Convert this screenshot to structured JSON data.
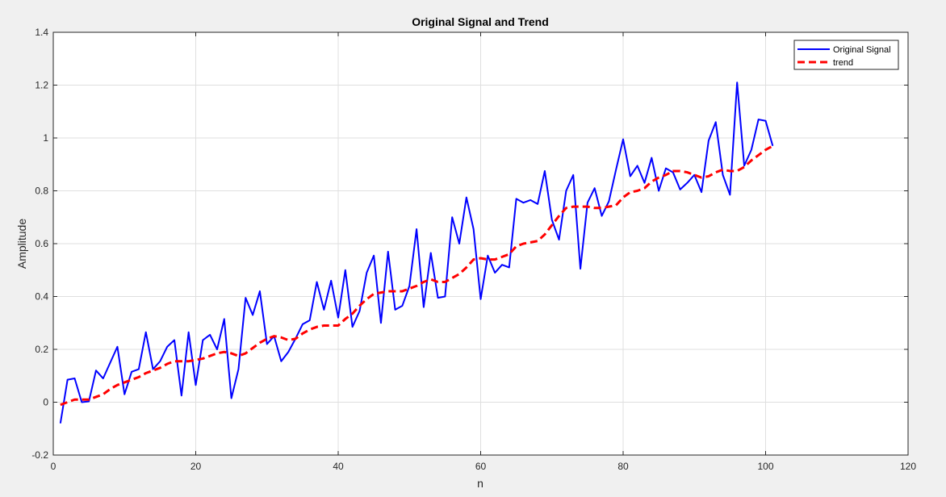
{
  "chart_data": {
    "type": "line",
    "title": "Original Signal and Trend",
    "xlabel": "n",
    "ylabel": "Amplitude",
    "xlim": [
      0,
      120
    ],
    "ylim": [
      -0.2,
      1.4
    ],
    "xticks": [
      0,
      20,
      40,
      60,
      80,
      100,
      120
    ],
    "yticks": [
      -0.2,
      0,
      0.2,
      0.4,
      0.6,
      0.8,
      1,
      1.2,
      1.4
    ],
    "xtick_labels": [
      "0",
      "20",
      "40",
      "60",
      "80",
      "100",
      "120"
    ],
    "ytick_labels": [
      "-0.2",
      "0",
      "0.2",
      "0.4",
      "0.6",
      "0.8",
      "1",
      "1.2",
      "1.4"
    ],
    "grid": true,
    "legend_position": "top-right",
    "series": [
      {
        "name": "Original Signal",
        "color": "#0000ff",
        "style": "solid",
        "x": [
          1,
          2,
          3,
          4,
          5,
          6,
          7,
          8,
          9,
          10,
          11,
          12,
          13,
          14,
          15,
          16,
          17,
          18,
          19,
          20,
          21,
          22,
          23,
          24,
          25,
          26,
          27,
          28,
          29,
          30,
          31,
          32,
          33,
          34,
          35,
          36,
          37,
          38,
          39,
          40,
          41,
          42,
          43,
          44,
          45,
          46,
          47,
          48,
          49,
          50,
          51,
          52,
          53,
          54,
          55,
          56,
          57,
          58,
          59,
          60,
          61,
          62,
          63,
          64,
          65,
          66,
          67,
          68,
          69,
          70,
          71,
          72,
          73,
          74,
          75,
          76,
          77,
          78,
          79,
          80,
          81,
          82,
          83,
          84,
          85,
          86,
          87,
          88,
          89,
          90,
          91,
          92,
          93,
          94,
          95,
          96,
          97,
          98,
          99,
          100,
          101
        ],
        "y": [
          -0.08,
          0.085,
          0.09,
          0.0,
          0.003,
          0.12,
          0.09,
          0.15,
          0.21,
          0.03,
          0.115,
          0.125,
          0.265,
          0.125,
          0.155,
          0.21,
          0.235,
          0.025,
          0.265,
          0.065,
          0.235,
          0.255,
          0.2,
          0.315,
          0.015,
          0.125,
          0.395,
          0.33,
          0.42,
          0.22,
          0.25,
          0.155,
          0.19,
          0.24,
          0.295,
          0.31,
          0.455,
          0.35,
          0.46,
          0.32,
          0.5,
          0.285,
          0.345,
          0.49,
          0.555,
          0.3,
          0.57,
          0.35,
          0.365,
          0.44,
          0.655,
          0.36,
          0.565,
          0.395,
          0.4,
          0.7,
          0.6,
          0.775,
          0.655,
          0.39,
          0.555,
          0.49,
          0.52,
          0.51,
          0.77,
          0.755,
          0.765,
          0.75,
          0.875,
          0.69,
          0.615,
          0.8,
          0.86,
          0.505,
          0.755,
          0.81,
          0.705,
          0.76,
          0.88,
          0.995,
          0.855,
          0.895,
          0.83,
          0.925,
          0.8,
          0.885,
          0.87,
          0.805,
          0.83,
          0.86,
          0.795,
          0.99,
          1.06,
          0.86,
          0.785,
          1.21,
          0.895,
          0.955,
          1.07,
          1.065,
          0.97
        ]
      },
      {
        "name": "trend",
        "color": "#ff0000",
        "style": "dashed",
        "x": [
          1,
          2,
          3,
          4,
          5,
          6,
          7,
          8,
          9,
          10,
          11,
          12,
          13,
          14,
          15,
          16,
          17,
          18,
          19,
          20,
          21,
          22,
          23,
          24,
          25,
          26,
          27,
          28,
          29,
          30,
          31,
          32,
          33,
          34,
          35,
          36,
          37,
          38,
          39,
          40,
          41,
          42,
          43,
          44,
          45,
          46,
          47,
          48,
          49,
          50,
          51,
          52,
          53,
          54,
          55,
          56,
          57,
          58,
          59,
          60,
          61,
          62,
          63,
          64,
          65,
          66,
          67,
          68,
          69,
          70,
          71,
          72,
          73,
          74,
          75,
          76,
          77,
          78,
          79,
          80,
          81,
          82,
          83,
          84,
          85,
          86,
          87,
          88,
          89,
          90,
          91,
          92,
          93,
          94,
          95,
          96,
          97,
          98,
          99,
          100,
          101
        ],
        "y": [
          -0.01,
          0.0,
          0.01,
          0.01,
          0.01,
          0.02,
          0.03,
          0.05,
          0.065,
          0.075,
          0.085,
          0.095,
          0.11,
          0.12,
          0.13,
          0.145,
          0.155,
          0.155,
          0.155,
          0.16,
          0.165,
          0.175,
          0.185,
          0.19,
          0.185,
          0.175,
          0.185,
          0.205,
          0.225,
          0.24,
          0.25,
          0.245,
          0.235,
          0.24,
          0.26,
          0.275,
          0.285,
          0.29,
          0.29,
          0.29,
          0.315,
          0.335,
          0.365,
          0.39,
          0.41,
          0.415,
          0.42,
          0.42,
          0.42,
          0.43,
          0.44,
          0.455,
          0.465,
          0.455,
          0.455,
          0.47,
          0.485,
          0.51,
          0.54,
          0.545,
          0.54,
          0.54,
          0.55,
          0.56,
          0.59,
          0.6,
          0.605,
          0.61,
          0.635,
          0.67,
          0.705,
          0.735,
          0.74,
          0.74,
          0.74,
          0.735,
          0.735,
          0.74,
          0.745,
          0.775,
          0.795,
          0.8,
          0.81,
          0.835,
          0.85,
          0.86,
          0.875,
          0.875,
          0.87,
          0.86,
          0.85,
          0.855,
          0.87,
          0.88,
          0.875,
          0.875,
          0.89,
          0.915,
          0.935,
          0.955,
          0.97
        ]
      }
    ]
  }
}
